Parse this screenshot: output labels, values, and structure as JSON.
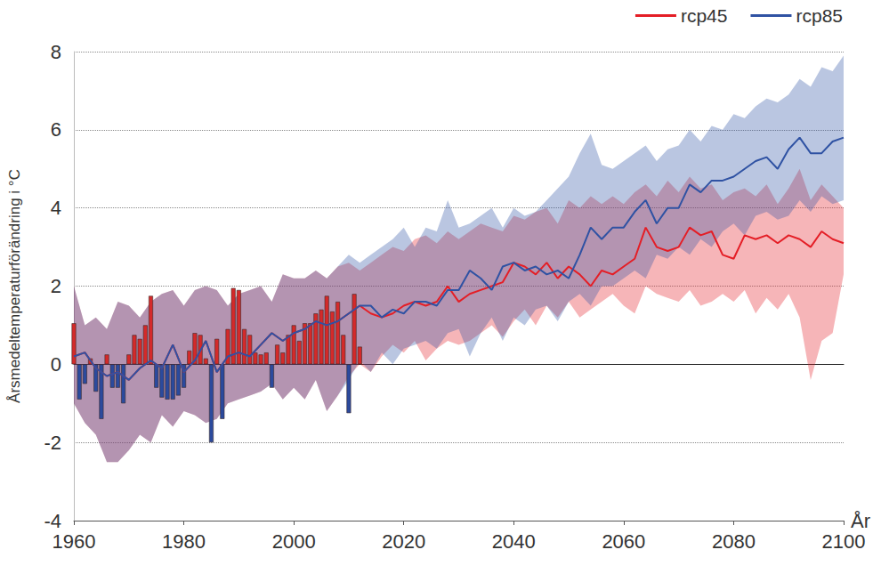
{
  "chart_data": {
    "type": "line",
    "xlabel": "År",
    "ylabel": "Årsmedeltemperaturförändring i °C",
    "xlim": [
      1960,
      2100
    ],
    "xticks": [
      1960,
      1980,
      2000,
      2020,
      2040,
      2060,
      2080,
      2100
    ],
    "ylim": [
      -4,
      8
    ],
    "yticks": [
      -4,
      -2,
      0,
      2,
      4,
      6,
      8
    ],
    "grid": true,
    "legend": "top-right",
    "x": [
      1960,
      1962,
      1964,
      1966,
      1968,
      1970,
      1972,
      1974,
      1976,
      1978,
      1980,
      1982,
      1984,
      1986,
      1988,
      1990,
      1992,
      1994,
      1996,
      1998,
      2000,
      2002,
      2004,
      2006,
      2008,
      2010,
      2012,
      2014,
      2016,
      2018,
      2020,
      2022,
      2024,
      2026,
      2028,
      2030,
      2032,
      2034,
      2036,
      2038,
      2040,
      2042,
      2044,
      2046,
      2048,
      2050,
      2052,
      2054,
      2056,
      2058,
      2060,
      2062,
      2064,
      2066,
      2068,
      2070,
      2072,
      2074,
      2076,
      2078,
      2080,
      2082,
      2084,
      2086,
      2088,
      2090,
      2092,
      2094,
      2096,
      2098,
      2100
    ],
    "series": [
      {
        "name": "rcp45",
        "type": "line",
        "color": "#e41e26",
        "values": [
          0.2,
          0.3,
          -0.1,
          -0.3,
          -0.2,
          -0.4,
          -0.1,
          0.1,
          -0.1,
          0.5,
          -0.2,
          0.1,
          0.6,
          -0.2,
          0.2,
          0.3,
          0.2,
          0.5,
          0.8,
          0.6,
          0.8,
          0.9,
          1.1,
          1.0,
          1.1,
          1.3,
          1.5,
          1.3,
          1.2,
          1.3,
          1.5,
          1.6,
          1.5,
          1.6,
          2.0,
          1.6,
          1.8,
          1.9,
          2.0,
          2.1,
          2.6,
          2.5,
          2.3,
          2.6,
          2.2,
          2.5,
          2.3,
          2.0,
          2.4,
          2.3,
          2.5,
          2.7,
          3.5,
          3.0,
          2.9,
          3.0,
          3.5,
          3.3,
          3.4,
          2.8,
          2.7,
          3.3,
          3.2,
          3.3,
          3.1,
          3.3,
          3.2,
          3.0,
          3.4,
          3.2,
          3.1
        ],
        "lower": [
          -1.0,
          -1.5,
          -1.8,
          -2.5,
          -2.5,
          -2.2,
          -1.8,
          -2.0,
          -1.3,
          -1.6,
          -1.2,
          -1.3,
          -1.5,
          -1.4,
          -1.0,
          -0.9,
          -0.8,
          -0.7,
          -0.5,
          -0.9,
          -0.6,
          -0.9,
          -0.4,
          -1.2,
          -0.8,
          -0.3,
          0.0,
          -0.2,
          0.2,
          0.5,
          0.3,
          0.6,
          0.1,
          0.4,
          0.6,
          0.5,
          0.6,
          0.8,
          1.0,
          0.7,
          1.1,
          1.4,
          1.0,
          1.5,
          1.2,
          1.6,
          1.2,
          1.4,
          1.6,
          1.8,
          1.5,
          1.3,
          2.0,
          1.8,
          1.7,
          1.6,
          1.9,
          1.5,
          1.6,
          1.8,
          1.6,
          1.9,
          1.3,
          1.7,
          1.4,
          1.8,
          1.2,
          -0.4,
          0.6,
          0.8,
          2.3
        ],
        "upper": [
          2.0,
          1.0,
          1.2,
          0.9,
          1.6,
          1.5,
          1.2,
          1.6,
          1.8,
          1.9,
          1.5,
          1.9,
          2.0,
          1.9,
          1.5,
          1.8,
          1.9,
          2.0,
          1.6,
          2.3,
          2.2,
          2.2,
          2.4,
          2.2,
          2.5,
          2.6,
          2.4,
          2.6,
          2.8,
          3.0,
          2.9,
          3.2,
          3.3,
          3.1,
          3.4,
          3.2,
          3.4,
          3.6,
          3.5,
          3.4,
          3.8,
          3.7,
          3.9,
          4.0,
          3.6,
          4.2,
          4.0,
          4.3,
          4.1,
          4.3,
          4.1,
          4.4,
          4.6,
          4.3,
          4.7,
          4.4,
          4.8,
          4.5,
          4.6,
          4.2,
          4.4,
          4.5,
          4.3,
          4.6,
          4.1,
          4.5,
          5.0,
          4.2,
          4.6,
          4.3,
          4.0
        ]
      },
      {
        "name": "rcp85",
        "type": "line",
        "color": "#2f52a3",
        "values": [
          0.2,
          0.3,
          -0.1,
          -0.3,
          -0.2,
          -0.4,
          -0.1,
          0.1,
          -0.1,
          0.5,
          -0.2,
          0.1,
          0.6,
          -0.2,
          0.2,
          0.3,
          0.2,
          0.5,
          0.8,
          0.6,
          0.8,
          0.9,
          1.1,
          1.0,
          1.1,
          1.3,
          1.5,
          1.5,
          1.2,
          1.4,
          1.3,
          1.6,
          1.6,
          1.5,
          1.9,
          1.9,
          2.4,
          2.2,
          1.9,
          2.5,
          2.6,
          2.4,
          2.5,
          2.3,
          2.4,
          2.2,
          2.8,
          3.5,
          3.2,
          3.5,
          3.5,
          3.9,
          4.2,
          3.6,
          4.0,
          4.0,
          4.6,
          4.4,
          4.7,
          4.7,
          4.8,
          5.0,
          5.2,
          5.3,
          5.0,
          5.5,
          5.8,
          5.4,
          5.4,
          5.7,
          5.8
        ],
        "lower": [
          -1.0,
          -1.5,
          -1.8,
          -2.5,
          -2.5,
          -2.2,
          -1.8,
          -2.0,
          -1.3,
          -1.6,
          -1.2,
          -1.3,
          -1.5,
          -1.4,
          -1.0,
          -0.9,
          -0.8,
          -0.7,
          -0.5,
          -0.9,
          -0.6,
          -0.9,
          -0.4,
          -1.2,
          -0.8,
          -0.4,
          0.1,
          -0.2,
          0.3,
          0.0,
          0.4,
          0.5,
          0.6,
          0.4,
          0.8,
          0.9,
          0.2,
          0.8,
          1.2,
          0.6,
          1.2,
          1.0,
          1.4,
          1.5,
          1.1,
          1.6,
          1.8,
          1.5,
          2.0,
          2.0,
          2.2,
          2.4,
          2.2,
          2.8,
          2.7,
          3.0,
          2.8,
          3.2,
          3.0,
          3.4,
          3.6,
          3.3,
          3.8,
          3.9,
          3.7,
          3.8,
          4.2,
          3.9,
          4.3,
          4.1,
          4.2
        ],
        "upper": [
          2.0,
          1.0,
          1.2,
          0.9,
          1.6,
          1.5,
          1.2,
          1.6,
          1.8,
          1.9,
          1.5,
          1.9,
          2.0,
          1.9,
          1.5,
          1.8,
          1.9,
          2.0,
          1.6,
          2.3,
          2.2,
          2.2,
          2.4,
          2.2,
          2.5,
          2.8,
          2.6,
          2.8,
          3.0,
          3.2,
          3.5,
          3.0,
          3.5,
          3.4,
          4.2,
          3.5,
          3.6,
          3.8,
          4.0,
          3.5,
          4.0,
          3.8,
          3.9,
          4.2,
          4.5,
          4.8,
          5.4,
          5.9,
          5.1,
          5.0,
          5.2,
          5.4,
          5.6,
          5.2,
          5.5,
          5.6,
          6.0,
          5.7,
          6.1,
          6.0,
          6.4,
          6.3,
          6.6,
          6.8,
          6.7,
          6.9,
          7.3,
          7.1,
          7.6,
          7.5,
          7.9
        ]
      },
      {
        "type": "bar",
        "x": [
          1960,
          1961,
          1962,
          1963,
          1964,
          1965,
          1966,
          1967,
          1968,
          1969,
          1970,
          1971,
          1972,
          1973,
          1974,
          1975,
          1976,
          1977,
          1978,
          1979,
          1980,
          1981,
          1982,
          1983,
          1984,
          1985,
          1986,
          1987,
          1988,
          1989,
          1990,
          1991,
          1992,
          1993,
          1994,
          1995,
          1996,
          1997,
          1998,
          1999,
          2000,
          2001,
          2002,
          2003,
          2004,
          2005,
          2006,
          2007,
          2008,
          2009,
          2010,
          2011,
          2012
        ],
        "values": [
          1.05,
          -0.9,
          -0.5,
          0.15,
          -0.7,
          -1.4,
          0.25,
          -0.6,
          -0.6,
          -1.0,
          0.25,
          0.75,
          0.65,
          1.0,
          1.75,
          -0.6,
          -0.85,
          -0.9,
          -0.9,
          -0.8,
          -0.6,
          0.35,
          0.8,
          0.75,
          0.15,
          -2.0,
          0.65,
          -1.4,
          0.9,
          1.95,
          1.9,
          0.9,
          0.75,
          0.3,
          0.25,
          0.3,
          -0.6,
          0.5,
          0.3,
          0.75,
          1.0,
          0.6,
          1.05,
          1.05,
          1.3,
          1.4,
          1.75,
          1.35,
          1.6,
          0.75,
          -1.25,
          1.8,
          0.45
        ],
        "colors": [
          "#d42a2a",
          "#2b4a9d",
          "#2b4a9d",
          "#d42a2a",
          "#2b4a9d",
          "#2b4a9d",
          "#d42a2a",
          "#2b4a9d",
          "#2b4a9d",
          "#2b4a9d",
          "#d42a2a",
          "#d42a2a",
          "#d42a2a",
          "#d42a2a",
          "#d42a2a",
          "#2b4a9d",
          "#2b4a9d",
          "#2b4a9d",
          "#2b4a9d",
          "#2b4a9d",
          "#2b4a9d",
          "#d42a2a",
          "#d42a2a",
          "#d42a2a",
          "#d42a2a",
          "#2b4a9d",
          "#d42a2a",
          "#2b4a9d",
          "#d42a2a",
          "#d42a2a",
          "#d42a2a",
          "#d42a2a",
          "#d42a2a",
          "#d42a2a",
          "#d42a2a",
          "#d42a2a",
          "#2b4a9d",
          "#d42a2a",
          "#d42a2a",
          "#d42a2a",
          "#d42a2a",
          "#d42a2a",
          "#d42a2a",
          "#d42a2a",
          "#d42a2a",
          "#d42a2a",
          "#d42a2a",
          "#d42a2a",
          "#d42a2a",
          "#d42a2a",
          "#2b4a9d",
          "#d42a2a",
          "#d42a2a"
        ]
      }
    ]
  }
}
